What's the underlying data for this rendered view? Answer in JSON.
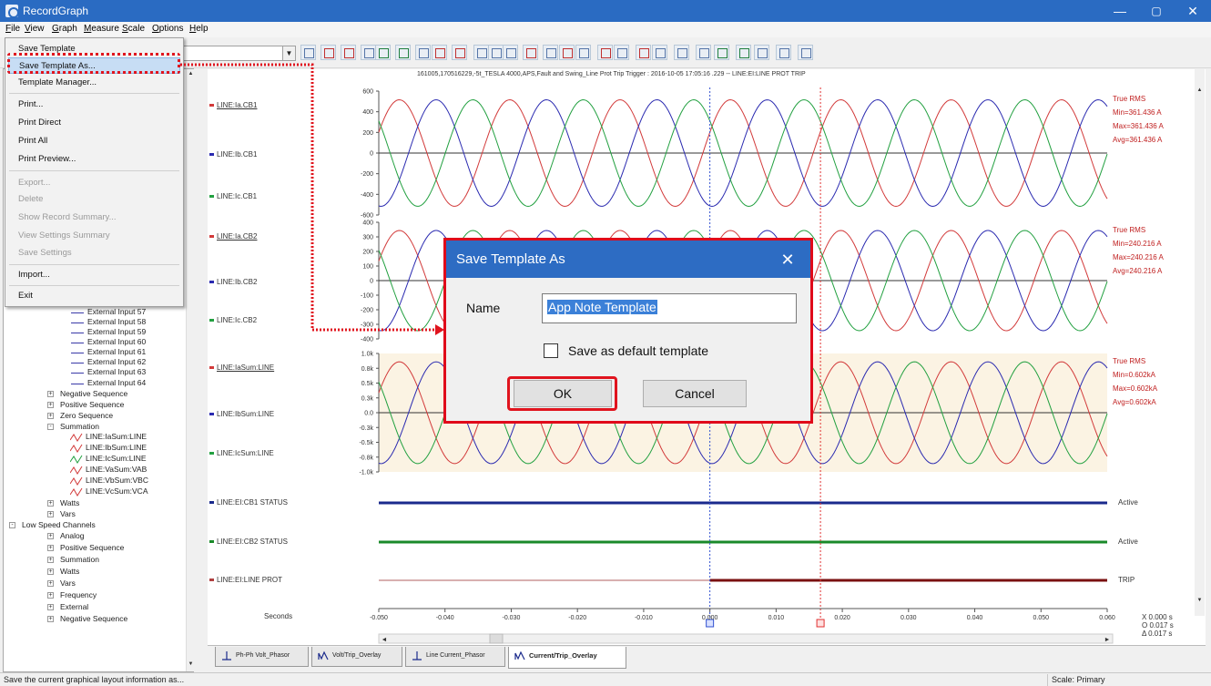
{
  "window": {
    "title": "RecordGraph",
    "minimize": "—",
    "maximize": "▢",
    "close": "✕"
  },
  "menubar": {
    "file": "File",
    "view": "View",
    "graph": "Graph",
    "measure": "Measure",
    "scale": "Scale",
    "options": "Options",
    "help": "Help"
  },
  "file_menu": {
    "save_template": "Save Template",
    "save_template_as": "Save Template As...",
    "template_manager": "Template Manager...",
    "print": "Print...",
    "print_direct": "Print Direct",
    "print_all": "Print All",
    "print_preview": "Print Preview...",
    "export": "Export...",
    "delete": "Delete",
    "show_record_summary": "Show Record Summary...",
    "view_settings_summary": "View Settings Summary",
    "save_settings": "Save Settings",
    "import": "Import...",
    "exit": "Exit"
  },
  "tree": {
    "external_inputs": [
      "External Input 57",
      "External Input 58",
      "External Input 59",
      "External Input 60",
      "External Input 61",
      "External Input 62",
      "External Input 63",
      "External Input 64"
    ],
    "negative_sequence": "Negative Sequence",
    "positive_sequence": "Positive Sequence",
    "zero_sequence": "Zero Sequence",
    "summation": "Summation",
    "summation_items": [
      "LINE:IaSum:LINE",
      "LINE:IbSum:LINE",
      "LINE:IcSum:LINE",
      "LINE:VaSum:VAB",
      "LINE:VbSum:VBC",
      "LINE:VcSum:VCA"
    ],
    "watts": "Watts",
    "vars": "Vars",
    "low_speed_channels": "Low Speed Channels",
    "low_speed_items": [
      "Analog",
      "Positive Sequence",
      "Summation",
      "Watts",
      "Vars",
      "Frequency",
      "External",
      "Negative Sequence"
    ]
  },
  "graph": {
    "title": "161005,170516229,-5t_TESLA 4000,APS,Fault and Swing_Line Prot Trip Trigger : 2016-10-05 17:05:16 .229 -- LINE:EI:LINE PROT TRIP",
    "panels": [
      {
        "labels": [
          "LINE:Ia.CB1",
          "LINE:Ib.CB1",
          "LINE:Ic.CB1"
        ],
        "ticks": [
          "600",
          "400",
          "200",
          "0",
          "-200",
          "-400",
          "-600"
        ],
        "stats": {
          "title": "True RMS",
          "min": "Min=361.436 A",
          "max": "Max=361.436 A",
          "avg": "Avg=361.436 A"
        }
      },
      {
        "labels": [
          "LINE:Ia.CB2",
          "LINE:Ib.CB2",
          "LINE:Ic.CB2"
        ],
        "ticks": [
          "400",
          "300",
          "200",
          "100",
          "0",
          "-100",
          "-200",
          "-300",
          "-400"
        ],
        "stats": {
          "title": "True RMS",
          "min": "Min=240.216 A",
          "max": "Max=240.216 A",
          "avg": "Avg=240.216 A"
        }
      },
      {
        "labels": [
          "LINE:IaSum:LINE",
          "LINE:IbSum:LINE",
          "LINE:IcSum:LINE"
        ],
        "ticks": [
          "1.0k",
          "0.8k",
          "0.5k",
          "0.3k",
          "0.0",
          "-0.3k",
          "-0.5k",
          "-0.8k",
          "-1.0k"
        ],
        "stats": {
          "title": "True RMS",
          "min": "Min=0.602kA",
          "max": "Max=0.602kA",
          "avg": "Avg=0.602kA"
        }
      }
    ],
    "digital": [
      {
        "label": "LINE:EI:CB1 STATUS",
        "status": "Active"
      },
      {
        "label": "LINE:EI:CB2 STATUS",
        "status": "Active"
      },
      {
        "label": "LINE:EI:LINE PROT",
        "status": "TRIP"
      }
    ],
    "x_axis_label": "Seconds",
    "x_ticks": [
      "-0.050",
      "-0.040",
      "-0.030",
      "-0.020",
      "-0.010",
      "0.000",
      "0.010",
      "0.020",
      "0.030",
      "0.040",
      "0.050",
      "0.060"
    ],
    "cursor_readout": {
      "x": "X 0.000 s",
      "o": "O 0.017 s",
      "delta": "Δ 0.017 s"
    },
    "colors": {
      "phase_a": "#d23a3a",
      "phase_b": "#2a2ab0",
      "phase_c": "#22a040",
      "cursor_x": "#3050d0",
      "cursor_o": "#e03030",
      "highlight": "#e0141e"
    }
  },
  "tabs": [
    "Ph-Ph Volt_Phasor",
    "Volt/Trip_Overlay",
    "Line Current_Phasor",
    "Current/Trip_Overlay"
  ],
  "dialog": {
    "title": "Save Template As",
    "name_label": "Name",
    "name_value": "App Note Template",
    "checkbox_label": "Save as  default template",
    "ok": "OK",
    "cancel": "Cancel"
  },
  "status": {
    "message": "Save the current graphical layout information as...",
    "scale": "Scale: Primary"
  }
}
